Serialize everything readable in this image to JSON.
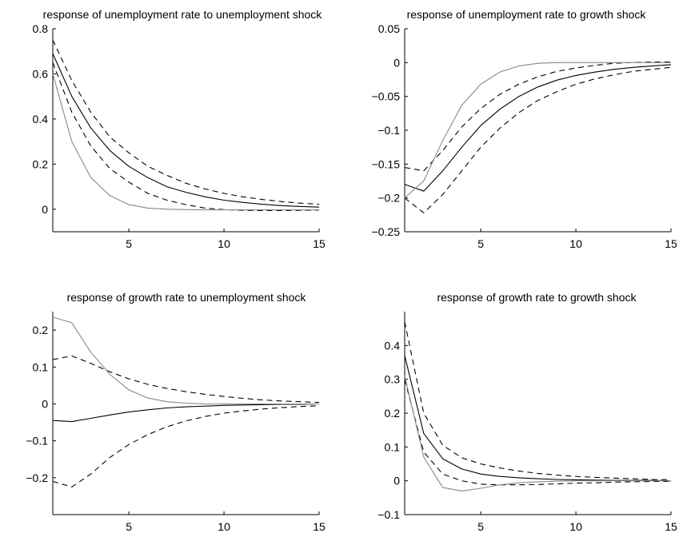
{
  "chart_data": [
    {
      "type": "line",
      "title": "response of unemployment rate to unemployment shock",
      "x": [
        1,
        2,
        3,
        4,
        5,
        6,
        7,
        8,
        9,
        10,
        11,
        12,
        13,
        14,
        15
      ],
      "xlim": [
        1,
        15
      ],
      "ylim": [
        -0.1,
        0.8
      ],
      "xticks": [
        5,
        10,
        15
      ],
      "yticks": [
        0,
        0.2,
        0.4,
        0.6,
        0.8
      ],
      "xtick_labels": [
        "5",
        "10",
        "15"
      ],
      "ytick_labels": [
        "0",
        "0.2",
        "0.4",
        "0.6",
        "0.8"
      ],
      "series": [
        {
          "style": "solid",
          "color": "#000000",
          "values": [
            0.69,
            0.5,
            0.36,
            0.26,
            0.19,
            0.14,
            0.1,
            0.075,
            0.055,
            0.04,
            0.03,
            0.022,
            0.016,
            0.012,
            0.009
          ]
        },
        {
          "style": "dashed",
          "color": "#000000",
          "values": [
            0.75,
            0.57,
            0.43,
            0.32,
            0.25,
            0.19,
            0.15,
            0.115,
            0.09,
            0.07,
            0.055,
            0.043,
            0.034,
            0.027,
            0.022
          ]
        },
        {
          "style": "dashed",
          "color": "#000000",
          "values": [
            0.65,
            0.43,
            0.28,
            0.18,
            0.12,
            0.07,
            0.04,
            0.02,
            0.005,
            -0.002,
            -0.005,
            -0.006,
            -0.006,
            -0.005,
            -0.004
          ]
        },
        {
          "style": "solid",
          "color": "#888888",
          "values": [
            0.6,
            0.3,
            0.14,
            0.06,
            0.02,
            0.005,
            0.0,
            -0.002,
            -0.003,
            -0.003,
            -0.003,
            -0.003,
            -0.003,
            -0.003,
            -0.003
          ]
        }
      ]
    },
    {
      "type": "line",
      "title": "response of unemployment rate to growth shock",
      "x": [
        1,
        2,
        3,
        4,
        5,
        6,
        7,
        8,
        9,
        10,
        11,
        12,
        13,
        14,
        15
      ],
      "xlim": [
        1,
        15
      ],
      "ylim": [
        -0.25,
        0.05
      ],
      "xticks": [
        5,
        10,
        15
      ],
      "yticks": [
        -0.25,
        -0.2,
        -0.15,
        -0.1,
        -0.05,
        0,
        0.05
      ],
      "xtick_labels": [
        "5",
        "10",
        "15"
      ],
      "ytick_labels": [
        "−0.25",
        "−0.2",
        "−0.15",
        "−0.1",
        "−0.05",
        "0",
        "0.05"
      ],
      "series": [
        {
          "style": "solid",
          "color": "#000000",
          "values": [
            -0.18,
            -0.19,
            -0.16,
            -0.125,
            -0.093,
            -0.069,
            -0.05,
            -0.036,
            -0.026,
            -0.019,
            -0.014,
            -0.01,
            -0.007,
            -0.005,
            -0.003
          ]
        },
        {
          "style": "dashed",
          "color": "#000000",
          "values": [
            -0.2,
            -0.222,
            -0.195,
            -0.16,
            -0.125,
            -0.097,
            -0.074,
            -0.056,
            -0.043,
            -0.032,
            -0.024,
            -0.018,
            -0.013,
            -0.01,
            -0.007
          ]
        },
        {
          "style": "dashed",
          "color": "#000000",
          "values": [
            -0.155,
            -0.16,
            -0.13,
            -0.095,
            -0.068,
            -0.047,
            -0.032,
            -0.021,
            -0.013,
            -0.008,
            -0.004,
            -0.001,
            0.0,
            0.001,
            0.001
          ]
        },
        {
          "style": "solid",
          "color": "#888888",
          "values": [
            -0.2,
            -0.175,
            -0.115,
            -0.063,
            -0.032,
            -0.014,
            -0.005,
            -0.001,
            0.0,
            0.0,
            0.0,
            0.0,
            0.0,
            0.0,
            0.0
          ]
        }
      ]
    },
    {
      "type": "line",
      "title": "response of growth rate to unemployment shock",
      "x": [
        1,
        2,
        3,
        4,
        5,
        6,
        7,
        8,
        9,
        10,
        11,
        12,
        13,
        14,
        15
      ],
      "xlim": [
        1,
        15
      ],
      "ylim": [
        -0.3,
        0.25
      ],
      "xticks": [
        5,
        10,
        15
      ],
      "yticks": [
        -0.2,
        -0.1,
        0,
        0.1,
        0.2
      ],
      "xtick_labels": [
        "5",
        "10",
        "15"
      ],
      "ytick_labels": [
        "−0.2",
        "−0.1",
        "0",
        "0.1",
        "0.2"
      ],
      "series": [
        {
          "style": "solid",
          "color": "#000000",
          "values": [
            -0.045,
            -0.048,
            -0.039,
            -0.03,
            -0.022,
            -0.016,
            -0.011,
            -0.008,
            -0.006,
            -0.004,
            -0.003,
            -0.002,
            -0.001,
            -0.001,
            0.0
          ]
        },
        {
          "style": "dashed",
          "color": "#000000",
          "values": [
            0.12,
            0.13,
            0.11,
            0.087,
            0.068,
            0.053,
            0.042,
            0.033,
            0.026,
            0.02,
            0.015,
            0.011,
            0.008,
            0.006,
            0.004
          ]
        },
        {
          "style": "dashed",
          "color": "#000000",
          "values": [
            -0.21,
            -0.225,
            -0.19,
            -0.145,
            -0.11,
            -0.083,
            -0.062,
            -0.046,
            -0.034,
            -0.025,
            -0.019,
            -0.014,
            -0.01,
            -0.007,
            -0.005
          ]
        },
        {
          "style": "solid",
          "color": "#888888",
          "values": [
            0.235,
            0.22,
            0.14,
            0.08,
            0.038,
            0.016,
            0.006,
            0.002,
            0.0,
            0.0,
            0.0,
            0.0,
            0.0,
            0.0,
            0.0
          ]
        }
      ]
    },
    {
      "type": "line",
      "title": "response of growth rate to growth shock",
      "x": [
        1,
        2,
        3,
        4,
        5,
        6,
        7,
        8,
        9,
        10,
        11,
        12,
        13,
        14,
        15
      ],
      "xlim": [
        1,
        15
      ],
      "ylim": [
        -0.1,
        0.5
      ],
      "xticks": [
        5,
        10,
        15
      ],
      "yticks": [
        -0.1,
        0,
        0.1,
        0.2,
        0.3,
        0.4
      ],
      "xtick_labels": [
        "5",
        "10",
        "15"
      ],
      "ytick_labels": [
        "−0.1",
        "0",
        "0.1",
        "0.2",
        "0.3",
        "0.4"
      ],
      "series": [
        {
          "style": "solid",
          "color": "#000000",
          "values": [
            0.37,
            0.14,
            0.065,
            0.035,
            0.02,
            0.013,
            0.009,
            0.006,
            0.004,
            0.003,
            0.002,
            0.001,
            0.001,
            0.001,
            0.0
          ]
        },
        {
          "style": "dashed",
          "color": "#000000",
          "values": [
            0.47,
            0.2,
            0.105,
            0.068,
            0.05,
            0.038,
            0.029,
            0.022,
            0.017,
            0.013,
            0.01,
            0.008,
            0.006,
            0.004,
            0.003
          ]
        },
        {
          "style": "dashed",
          "color": "#000000",
          "values": [
            0.3,
            0.085,
            0.02,
            0.0,
            -0.01,
            -0.012,
            -0.012,
            -0.011,
            -0.009,
            -0.007,
            -0.006,
            -0.004,
            -0.003,
            -0.002,
            -0.002
          ]
        },
        {
          "style": "solid",
          "color": "#888888",
          "values": [
            0.31,
            0.07,
            -0.02,
            -0.03,
            -0.022,
            -0.012,
            -0.006,
            -0.003,
            -0.001,
            0.0,
            0.0,
            0.0,
            0.0,
            0.0,
            0.0
          ]
        }
      ]
    }
  ]
}
